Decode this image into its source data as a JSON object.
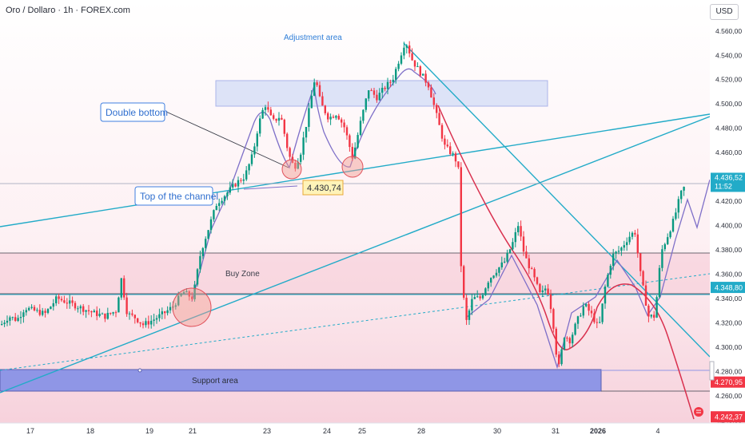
{
  "header": {
    "symbol": "Oro / Dollaro · 1h · FOREX.com",
    "currency": "USD"
  },
  "colors": {
    "up": "#089981",
    "down": "#f23645",
    "teal": "#22abc8",
    "purple": "#7e6fc8",
    "redline": "#d9304e",
    "zone": "#7e86e2"
  },
  "chart_data": {
    "type": "candlestick",
    "title": "",
    "xlabel": "",
    "ylabel": "",
    "ylim": [
      4233,
      4573
    ],
    "yticks": [
      4560,
      4540,
      4520,
      4500,
      4480,
      4460,
      4440,
      4420,
      4400,
      4380,
      4360,
      4340,
      4320,
      4300,
      4280,
      4260,
      4240
    ],
    "ytick_labels": [
      "4.560,00",
      "4.540,00",
      "4.520,00",
      "4.500,00",
      "4.480,00",
      "4.460,00",
      "4.440,00",
      "4.420,00",
      "4.400,00",
      "4.380,00",
      "4.360,00",
      "4.340,00",
      "4.320,00",
      "4.300,00",
      "4.280,00",
      "4.260,00",
      "4.240,00"
    ],
    "xticks": [
      "17",
      "18",
      "19",
      "21",
      "23",
      "24",
      "25",
      "28",
      "30",
      "31",
      "2026",
      "4"
    ],
    "path": [
      [
        0,
        4318
      ],
      [
        10,
        4325
      ],
      [
        20,
        4322
      ],
      [
        30,
        4332
      ],
      [
        40,
        4330
      ],
      [
        55,
        4327
      ],
      [
        70,
        4340
      ],
      [
        85,
        4336
      ],
      [
        100,
        4332
      ],
      [
        115,
        4328
      ],
      [
        130,
        4325
      ],
      [
        145,
        4330
      ],
      [
        150,
        4358
      ],
      [
        158,
        4327
      ],
      [
        168,
        4324
      ],
      [
        178,
        4318
      ],
      [
        190,
        4322
      ],
      [
        205,
        4328
      ],
      [
        215,
        4333
      ],
      [
        228,
        4345
      ],
      [
        240,
        4340
      ],
      [
        250,
        4378
      ],
      [
        260,
        4398
      ],
      [
        270,
        4418
      ],
      [
        285,
        4428
      ],
      [
        295,
        4435
      ],
      [
        305,
        4440
      ],
      [
        315,
        4458
      ],
      [
        322,
        4482
      ],
      [
        330,
        4500
      ],
      [
        340,
        4485
      ],
      [
        350,
        4490
      ],
      [
        360,
        4458
      ],
      [
        367,
        4447
      ],
      [
        375,
        4460
      ],
      [
        385,
        4493
      ],
      [
        393,
        4522
      ],
      [
        400,
        4500
      ],
      [
        410,
        4488
      ],
      [
        420,
        4492
      ],
      [
        430,
        4480
      ],
      [
        440,
        4455
      ],
      [
        450,
        4485
      ],
      [
        460,
        4512
      ],
      [
        470,
        4505
      ],
      [
        480,
        4513
      ],
      [
        490,
        4520
      ],
      [
        500,
        4540
      ],
      [
        506,
        4552
      ],
      [
        515,
        4535
      ],
      [
        525,
        4525
      ],
      [
        535,
        4515
      ],
      [
        545,
        4490
      ],
      [
        555,
        4465
      ],
      [
        565,
        4458
      ],
      [
        572,
        4450
      ],
      [
        576,
        4358
      ],
      [
        582,
        4320
      ],
      [
        590,
        4340
      ],
      [
        600,
        4340
      ],
      [
        610,
        4355
      ],
      [
        620,
        4363
      ],
      [
        630,
        4370
      ],
      [
        640,
        4385
      ],
      [
        647,
        4400
      ],
      [
        655,
        4375
      ],
      [
        665,
        4360
      ],
      [
        675,
        4342
      ],
      [
        683,
        4350
      ],
      [
        690,
        4325
      ],
      [
        697,
        4280
      ],
      [
        705,
        4310
      ],
      [
        712,
        4305
      ],
      [
        720,
        4320
      ],
      [
        730,
        4335
      ],
      [
        740,
        4325
      ],
      [
        748,
        4315
      ],
      [
        756,
        4350
      ],
      [
        765,
        4375
      ],
      [
        775,
        4380
      ],
      [
        785,
        4390
      ],
      [
        793,
        4395
      ],
      [
        800,
        4360
      ],
      [
        810,
        4325
      ],
      [
        818,
        4325
      ],
      [
        826,
        4378
      ],
      [
        835,
        4393
      ],
      [
        842,
        4405
      ],
      [
        850,
        4425
      ],
      [
        857,
        4434
      ]
    ],
    "horizontal_levels": [
      {
        "price": 4430.74,
        "label": "4.430,74"
      },
      {
        "price": 4436.52,
        "label": "4.436,52",
        "sub": "11:52"
      },
      {
        "price": 4348.8,
        "label": "4.348,80"
      },
      {
        "price": 4270.95,
        "label": "4.270,95"
      },
      {
        "price": 4242.37,
        "label": "4.242,37"
      }
    ],
    "annotations": {
      "adjustment_area": "Adjustment area",
      "double_bottom": "Double bottom",
      "top_of_channel": "Top of the channel",
      "buy_zone": "Buy Zone",
      "support_area": "Support area",
      "level_tag": "4.430,74"
    }
  }
}
